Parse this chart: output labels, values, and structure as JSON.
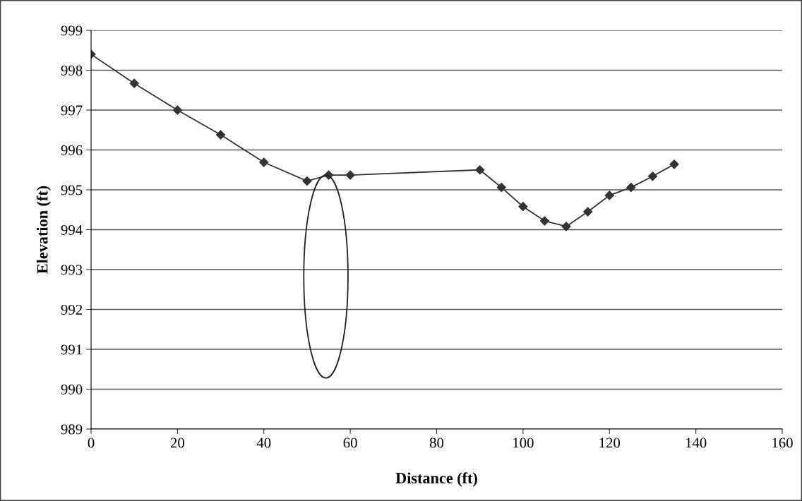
{
  "chart_data": {
    "type": "line",
    "xlabel": "Distance (ft)",
    "ylabel": "Elevation (ft)",
    "x": [
      0,
      10,
      20,
      30,
      40,
      50,
      55,
      60,
      90,
      95,
      100,
      105,
      110,
      115,
      120,
      125,
      130,
      135
    ],
    "series": [
      {
        "color": "#333333",
        "values": [
          998.4,
          997.67,
          997.0,
          996.38,
          995.69,
          995.22,
          995.37,
          995.37,
          995.5,
          995.06,
          994.58,
          994.22,
          994.08,
          994.45,
          994.86,
          995.06,
          995.34,
          995.64
        ]
      }
    ],
    "xlim": [
      0,
      160
    ],
    "xticks": [
      0,
      20,
      40,
      60,
      80,
      100,
      120,
      140,
      160
    ],
    "ylim": [
      989,
      999
    ],
    "yticks": [
      989,
      990,
      991,
      992,
      993,
      994,
      995,
      996,
      997,
      998,
      999
    ],
    "grid": "y",
    "marker": "diamond",
    "line_style": "solid",
    "legend": false
  }
}
